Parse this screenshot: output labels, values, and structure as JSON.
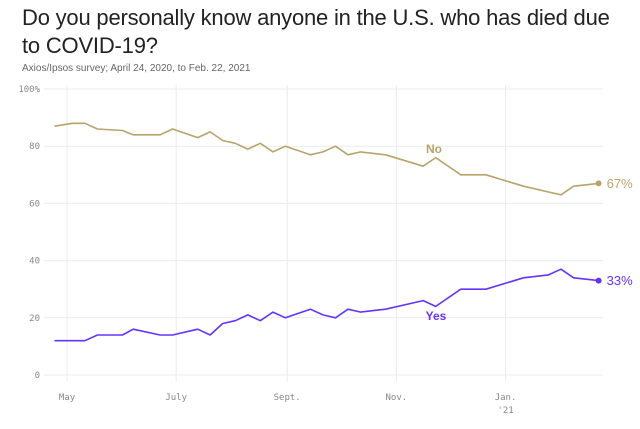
{
  "title": "Do you personally know anyone in the U.S. who has died due to COVID-19?",
  "subtitle": "Axios/Ipsos survey; April 24, 2020, to Feb. 22, 2021",
  "chart_data": {
    "type": "line",
    "title": "Do you personally know anyone in the U.S. who has died due to COVID-19?",
    "xlabel": "",
    "ylabel": "",
    "ylim": [
      0,
      100
    ],
    "xlim": [
      "2020-04-20",
      "2021-02-28"
    ],
    "grid": true,
    "y_ticks": [
      {
        "value": 100,
        "label": "100%"
      },
      {
        "value": 80,
        "label": "80"
      },
      {
        "value": 60,
        "label": "60"
      },
      {
        "value": 40,
        "label": "40"
      },
      {
        "value": 20,
        "label": "20"
      },
      {
        "value": 0,
        "label": "0"
      }
    ],
    "x_ticks": [
      {
        "date": "2020-05-01",
        "label": "May",
        "sub": ""
      },
      {
        "date": "2020-07-01",
        "label": "July",
        "sub": ""
      },
      {
        "date": "2020-09-01",
        "label": "Sept.",
        "sub": ""
      },
      {
        "date": "2020-11-01",
        "label": "Nov.",
        "sub": ""
      },
      {
        "date": "2021-01-01",
        "label": "Jan.",
        "sub": "'21"
      }
    ],
    "x": [
      "2020-04-24",
      "2020-05-04",
      "2020-05-11",
      "2020-05-18",
      "2020-06-01",
      "2020-06-07",
      "2020-06-22",
      "2020-06-29",
      "2020-07-13",
      "2020-07-20",
      "2020-07-27",
      "2020-08-03",
      "2020-08-10",
      "2020-08-17",
      "2020-08-24",
      "2020-08-31",
      "2020-09-14",
      "2020-09-21",
      "2020-09-28",
      "2020-10-05",
      "2020-10-12",
      "2020-10-26",
      "2020-11-16",
      "2020-11-23",
      "2020-12-07",
      "2020-12-21",
      "2021-01-11",
      "2021-01-25",
      "2021-02-01",
      "2021-02-08",
      "2021-02-22"
    ],
    "series": [
      {
        "name": "No",
        "color": "#b8a46a",
        "end_label": "67%",
        "values": [
          87,
          88,
          88,
          86,
          85.5,
          84,
          84,
          86,
          83,
          85,
          82,
          81,
          79,
          81,
          78,
          80,
          77,
          78,
          80,
          77,
          78,
          77,
          73,
          76,
          70,
          70,
          66,
          64,
          63,
          66,
          67
        ]
      },
      {
        "name": "Yes",
        "color": "#6533ff",
        "end_label": "33%",
        "values": [
          12,
          12,
          12,
          14,
          14,
          16,
          14,
          14,
          16,
          14,
          18,
          19,
          21,
          19,
          22,
          20,
          23,
          21,
          20,
          23,
          22,
          23,
          26,
          24,
          30,
          30,
          34,
          35,
          37,
          34,
          33
        ]
      }
    ]
  }
}
